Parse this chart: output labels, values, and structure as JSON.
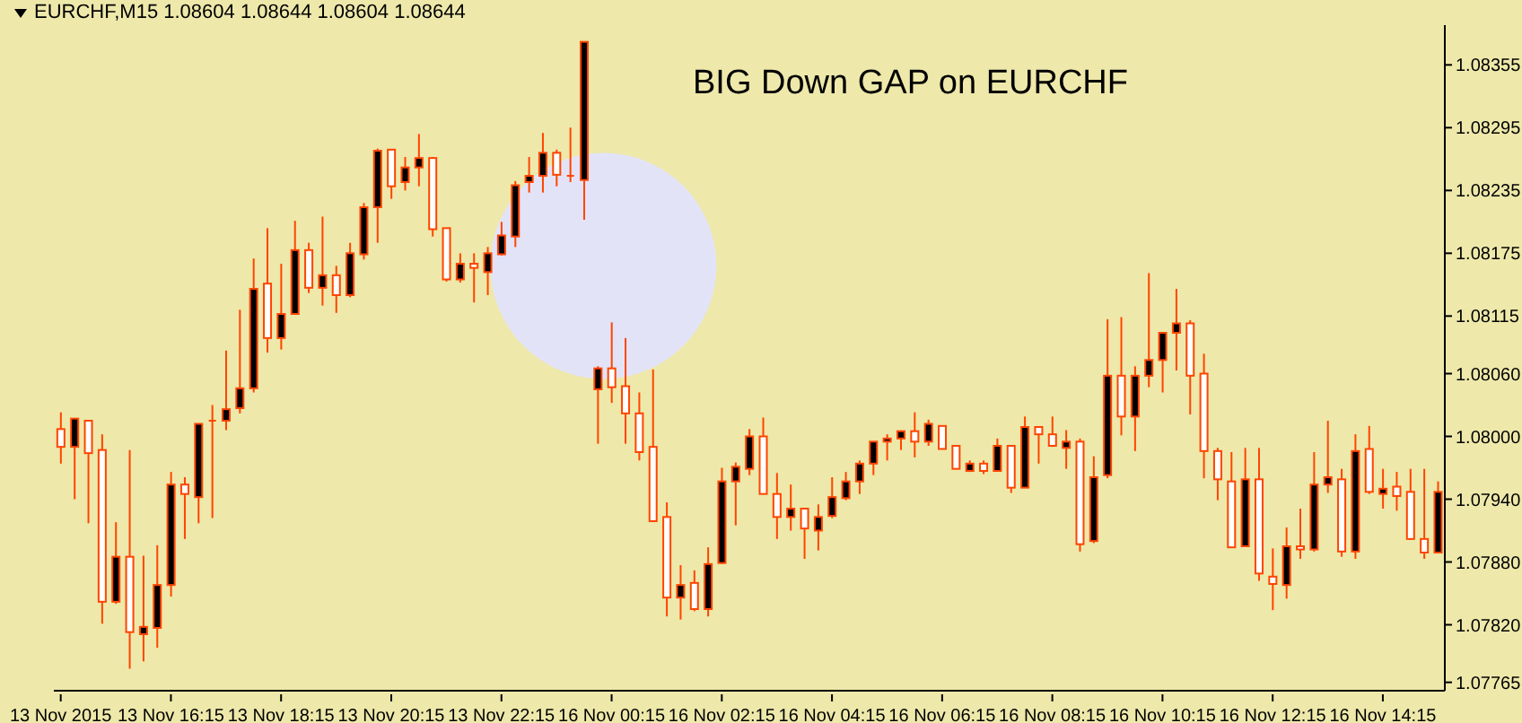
{
  "chart_data": {
    "type": "candlestick",
    "title": "EURCHF,M15 1.08604 1.08644 1.08604 1.08644",
    "annotations": [
      "BIG Down GAP on EURCHF"
    ],
    "color": "#ff4500",
    "categories": [
      "13 Nov 2015",
      null,
      null,
      null,
      null,
      null,
      null,
      null,
      "13 Nov 16:15",
      null,
      null,
      null,
      null,
      null,
      null,
      null,
      "13 Nov 18:15",
      null,
      null,
      null,
      null,
      null,
      null,
      null,
      "13 Nov 20:15",
      null,
      null,
      null,
      null,
      null,
      null,
      null,
      "13 Nov 22:15",
      null,
      null,
      null,
      null,
      null,
      null,
      null,
      "16 Nov 00:15",
      null,
      null,
      null,
      null,
      null,
      null,
      null,
      "16 Nov 02:15",
      null,
      null,
      null,
      null,
      null,
      null,
      null,
      "16 Nov 04:15",
      null,
      null,
      null,
      null,
      null,
      null,
      null,
      "16 Nov 06:15",
      null,
      null,
      null,
      null,
      null,
      null,
      null,
      "16 Nov 08:15",
      null,
      null,
      null,
      null,
      null,
      null,
      null,
      "16 Nov 10:15",
      null,
      null,
      null,
      null,
      null,
      null,
      null,
      "16 Nov 12:15",
      null,
      null,
      null,
      null,
      null,
      null,
      null,
      "16 Nov 14:15",
      null,
      null,
      null,
      null
    ],
    "ylim": [
      1.07757,
      1.08393
    ],
    "yticks": [
      1.07765,
      {
        "value": 1.0782,
        "label": "1.07820"
      },
      {
        "value": 1.0788,
        "label": "1.07880"
      },
      {
        "value": 1.0794,
        "label": "1.07940"
      },
      {
        "value": 1.08,
        "label": "1.08000"
      },
      {
        "value": 1.0806,
        "label": "1.08060"
      },
      1.08115,
      1.08175,
      1.08235,
      1.08295,
      1.08355
    ],
    "ohlc": [
      [
        1.08007,
        1.08023,
        1.07974,
        1.0799
      ],
      [
        1.0799,
        1.08017,
        1.0794,
        1.08017
      ],
      [
        1.08015,
        1.08015,
        1.07917,
        1.07984
      ],
      [
        1.07987,
        1.08002,
        1.07821,
        1.07842
      ],
      [
        1.07842,
        1.07918,
        1.0784,
        1.07885
      ],
      [
        1.07885,
        1.07987,
        1.07778,
        1.07813
      ],
      [
        1.07811,
        1.07886,
        1.07785,
        1.07818
      ],
      [
        1.07817,
        1.07896,
        1.07798,
        1.07858
      ],
      [
        1.07858,
        1.07966,
        1.07847,
        1.07954
      ],
      [
        1.07954,
        1.07961,
        1.07902,
        1.07945
      ],
      [
        1.07942,
        1.08012,
        1.07917,
        1.08012
      ],
      [
        1.08015,
        1.0803,
        1.07922,
        1.08015
      ],
      [
        1.08015,
        1.08082,
        1.08006,
        1.08026
      ],
      [
        1.08027,
        1.08121,
        1.08022,
        1.08046
      ],
      [
        1.08046,
        1.0817,
        1.08042,
        1.08141
      ],
      [
        1.08146,
        1.08199,
        1.0808,
        1.08094
      ],
      [
        1.08094,
        1.08165,
        1.08083,
        1.08117
      ],
      [
        1.08117,
        1.08206,
        1.08117,
        1.08178
      ],
      [
        1.08178,
        1.08185,
        1.08137,
        1.08142
      ],
      [
        1.08142,
        1.0821,
        1.08125,
        1.08154
      ],
      [
        1.08154,
        1.08163,
        1.08118,
        1.08135
      ],
      [
        1.08135,
        1.08185,
        1.08133,
        1.08175
      ],
      [
        1.08174,
        1.08223,
        1.08169,
        1.08219
      ],
      [
        1.08219,
        1.08275,
        1.08185,
        1.08273
      ],
      [
        1.08274,
        1.08274,
        1.08227,
        1.08239
      ],
      [
        1.08243,
        1.08267,
        1.08235,
        1.08257
      ],
      [
        1.08257,
        1.08289,
        1.08239,
        1.08266
      ],
      [
        1.08266,
        1.08267,
        1.08191,
        1.08198
      ],
      [
        1.08199,
        1.08199,
        1.08148,
        1.0815
      ],
      [
        1.0815,
        1.08175,
        1.08147,
        1.08165
      ],
      [
        1.08165,
        1.08175,
        1.08128,
        1.08161
      ],
      [
        1.08157,
        1.08181,
        1.08135,
        1.08175
      ],
      [
        1.08174,
        1.08205,
        1.08173,
        1.08192
      ],
      [
        1.08191,
        1.08244,
        1.08181,
        1.0824
      ],
      [
        1.08243,
        1.08267,
        1.08233,
        1.08249
      ],
      [
        1.08249,
        1.0829,
        1.08233,
        1.08271
      ],
      [
        1.08271,
        1.08274,
        1.08239,
        1.0825
      ],
      [
        1.08249,
        1.08295,
        1.08243,
        1.08249
      ],
      [
        1.08245,
        1.08377,
        1.08207,
        1.08377
      ],
      [
        1.08045,
        1.08067,
        1.07993,
        1.08065
      ],
      [
        1.08065,
        1.08109,
        1.08032,
        1.08047
      ],
      [
        1.08048,
        1.08094,
        1.07993,
        1.08022
      ],
      [
        1.08022,
        1.08042,
        1.07977,
        1.07985
      ],
      [
        1.0799,
        1.08064,
        1.07919,
        1.07919
      ],
      [
        1.07923,
        1.07937,
        1.07828,
        1.07846
      ],
      [
        1.07846,
        1.07877,
        1.07825,
        1.07858
      ],
      [
        1.0786,
        1.07872,
        1.07833,
        1.07835
      ],
      [
        1.07835,
        1.07894,
        1.07828,
        1.07878
      ],
      [
        1.07879,
        1.0797,
        1.07878,
        1.07957
      ],
      [
        1.07957,
        1.07975,
        1.07915,
        1.07971
      ],
      [
        1.07969,
        1.08007,
        1.07963,
        1.08
      ],
      [
        1.08,
        1.08018,
        1.07945,
        1.07945
      ],
      [
        1.07945,
        1.07965,
        1.07902,
        1.07923
      ],
      [
        1.07923,
        1.07954,
        1.0791,
        1.07931
      ],
      [
        1.07931,
        1.07931,
        1.07883,
        1.07912
      ],
      [
        1.0791,
        1.07935,
        1.07891,
        1.07923
      ],
      [
        1.07924,
        1.07961,
        1.07922,
        1.07942
      ],
      [
        1.07941,
        1.07966,
        1.07939,
        1.07957
      ],
      [
        1.07957,
        1.07977,
        1.07945,
        1.07974
      ],
      [
        1.07974,
        1.07995,
        1.07963,
        1.07995
      ],
      [
        1.07995,
        1.08002,
        1.07977,
        1.07998
      ],
      [
        1.07998,
        1.08005,
        1.07987,
        1.08005
      ],
      [
        1.08005,
        1.08023,
        1.0798,
        1.07995
      ],
      [
        1.07995,
        1.08016,
        1.07991,
        1.08012
      ],
      [
        1.0801,
        1.0801,
        1.07988,
        1.07988
      ],
      [
        1.07991,
        1.07991,
        1.07969,
        1.07969
      ],
      [
        1.07967,
        1.07977,
        1.07966,
        1.07974
      ],
      [
        1.07974,
        1.07977,
        1.07964,
        1.07967
      ],
      [
        1.07967,
        1.07998,
        1.07967,
        1.07991
      ],
      [
        1.07991,
        1.07991,
        1.07946,
        1.07951
      ],
      [
        1.07951,
        1.08019,
        1.07951,
        1.08009
      ],
      [
        1.08009,
        1.08009,
        1.07974,
        1.08002
      ],
      [
        1.08002,
        1.08019,
        1.0799,
        1.07991
      ],
      [
        1.07989,
        1.08006,
        1.07969,
        1.07995
      ],
      [
        1.07995,
        1.07998,
        1.0789,
        1.07897
      ],
      [
        1.079,
        1.07981,
        1.07898,
        1.07961
      ],
      [
        1.07963,
        1.08112,
        1.0796,
        1.08058
      ],
      [
        1.08058,
        1.08114,
        1.08001,
        1.08019
      ],
      [
        1.08019,
        1.08067,
        1.07986,
        1.08058
      ],
      [
        1.08058,
        1.08156,
        1.08047,
        1.08073
      ],
      [
        1.08073,
        1.08099,
        1.08042,
        1.08099
      ],
      [
        1.08099,
        1.08141,
        1.08063,
        1.08108
      ],
      [
        1.08108,
        1.08111,
        1.08021,
        1.08058
      ],
      [
        1.0806,
        1.08079,
        1.0796,
        1.07986
      ],
      [
        1.07986,
        1.07989,
        1.07939,
        1.07959
      ],
      [
        1.07957,
        1.07985,
        1.07894,
        1.07894
      ],
      [
        1.07895,
        1.07989,
        1.07895,
        1.07959
      ],
      [
        1.07959,
        1.07989,
        1.07862,
        1.07869
      ],
      [
        1.07866,
        1.07893,
        1.07834,
        1.07859
      ],
      [
        1.07858,
        1.07913,
        1.07845,
        1.07895
      ],
      [
        1.07895,
        1.07931,
        1.07883,
        1.07892
      ],
      [
        1.07892,
        1.07985,
        1.0789,
        1.07954
      ],
      [
        1.07954,
        1.08015,
        1.07946,
        1.07961
      ],
      [
        1.07959,
        1.07969,
        1.07885,
        1.0789
      ],
      [
        1.0789,
        1.08002,
        1.07883,
        1.07986
      ],
      [
        1.07988,
        1.0801,
        1.07945,
        1.07947
      ],
      [
        1.07945,
        1.07969,
        1.07931,
        1.0795
      ],
      [
        1.07952,
        1.07966,
        1.07929,
        1.07943
      ],
      [
        1.07947,
        1.07969,
        1.07901,
        1.07902
      ],
      [
        1.07902,
        1.07969,
        1.07883,
        1.07889
      ],
      [
        1.07889,
        1.07957,
        1.07889,
        1.07947
      ]
    ]
  }
}
